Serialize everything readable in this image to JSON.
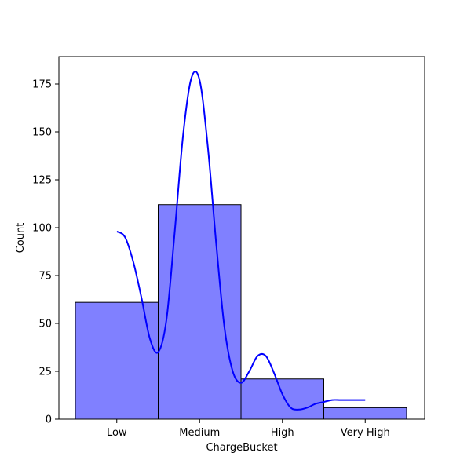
{
  "chart_data": {
    "type": "bar",
    "categories": [
      "Low",
      "Medium",
      "High",
      "Very High"
    ],
    "values": [
      61,
      112,
      21,
      6
    ],
    "xlabel": "ChargeBucket",
    "ylabel": "Count",
    "ylim": [
      0,
      185
    ],
    "yticks": [
      0,
      25,
      50,
      75,
      100,
      125,
      150,
      175
    ],
    "grid": false,
    "bar_color": "#8080ff",
    "bar_edge_color": "#000000",
    "kde": {
      "color": "#0000ff",
      "x": [
        0.0,
        0.1,
        0.2,
        0.3,
        0.4,
        0.5,
        0.6,
        0.7,
        0.8,
        0.9,
        1.0,
        1.1,
        1.2,
        1.3,
        1.4,
        1.5,
        1.6,
        1.7,
        1.8,
        1.9,
        2.0,
        2.1,
        2.2,
        2.3,
        2.4,
        2.5,
        2.6,
        2.7,
        2.8,
        2.9,
        3.0
      ],
      "y": [
        98,
        95,
        82,
        63,
        42,
        35,
        52,
        98,
        148,
        178,
        177,
        142,
        92,
        48,
        25,
        19,
        25,
        33,
        33,
        24,
        13,
        6,
        5,
        6,
        8,
        9,
        10,
        10,
        10,
        10,
        10
      ]
    }
  }
}
